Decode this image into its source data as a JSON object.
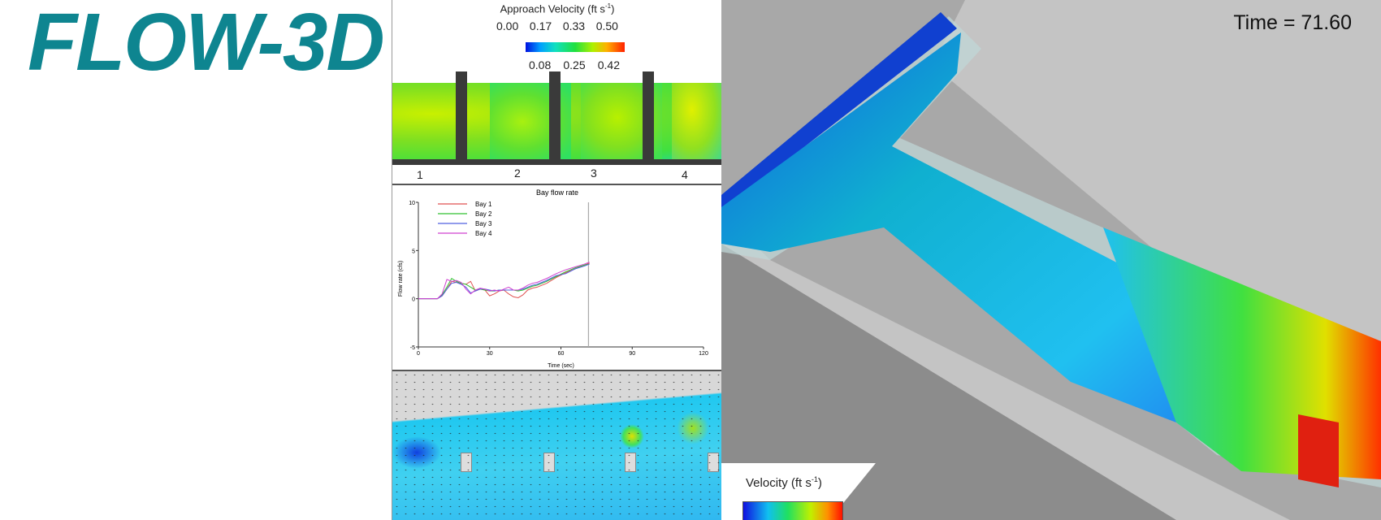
{
  "logo": {
    "text": "FLOW-3D",
    "mark": "®",
    "color": "#0e8590"
  },
  "approach": {
    "title": "Approach Velocity (ft s",
    "title_sup": "-1",
    "title_end": ")",
    "ticks_top": [
      "0.00",
      "0.17",
      "0.33",
      "0.50"
    ],
    "ticks_bottom": [
      "0.08",
      "0.25",
      "0.42"
    ],
    "bays": [
      "1",
      "2",
      "3",
      "4"
    ]
  },
  "time_label": "Time = 71.60",
  "velocity_legend": {
    "title": "Velocity (ft s",
    "sup": "-1",
    "end": ")"
  },
  "chart_data": {
    "type": "line",
    "title": "Bay flow rate",
    "xlabel": "Time (sec)",
    "ylabel": "Flow rate (cfs)",
    "xlim": [
      0,
      120
    ],
    "ylim": [
      -5,
      10
    ],
    "xticks": [
      "0",
      "30",
      "60",
      "90",
      "120"
    ],
    "yticks": [
      "-5",
      "0",
      "5",
      "10"
    ],
    "legend": "top-left",
    "marker_time": 71.6,
    "x": [
      0,
      8,
      10,
      12,
      14,
      16,
      18,
      20,
      22,
      24,
      26,
      28,
      30,
      32,
      34,
      36,
      38,
      40,
      42,
      44,
      46,
      48,
      50,
      54,
      58,
      62,
      66,
      70,
      72
    ],
    "series": [
      {
        "name": "Bay 1",
        "color": "#e05050",
        "values": [
          0,
          0,
          0.3,
          1.0,
          1.8,
          1.7,
          1.6,
          1.5,
          1.8,
          0.8,
          1.0,
          0.9,
          0.3,
          0.5,
          0.8,
          0.9,
          0.5,
          0.2,
          0.1,
          0.4,
          0.9,
          1.1,
          1.2,
          1.6,
          2.2,
          2.7,
          3.1,
          3.5,
          3.7
        ]
      },
      {
        "name": "Bay 2",
        "color": "#30c030",
        "values": [
          0,
          0,
          0.4,
          1.2,
          2.1,
          1.8,
          1.6,
          1.5,
          1.2,
          0.9,
          1.0,
          0.9,
          0.8,
          0.8,
          0.9,
          0.9,
          0.9,
          0.9,
          0.8,
          0.9,
          1.1,
          1.3,
          1.4,
          1.8,
          2.3,
          2.8,
          3.2,
          3.5,
          3.6
        ]
      },
      {
        "name": "Bay 3",
        "color": "#5060e0",
        "values": [
          0,
          0,
          0.3,
          1.0,
          1.6,
          1.7,
          1.5,
          1.2,
          0.6,
          0.8,
          1.0,
          1.0,
          0.9,
          0.8,
          0.9,
          0.9,
          0.9,
          0.9,
          0.9,
          1.0,
          1.2,
          1.4,
          1.5,
          1.9,
          2.4,
          2.6,
          3.1,
          3.4,
          3.6
        ]
      },
      {
        "name": "Bay 4",
        "color": "#d040d0",
        "values": [
          0,
          0,
          0.5,
          2.0,
          1.8,
          1.9,
          1.7,
          1.0,
          0.5,
          0.9,
          1.1,
          1.0,
          0.8,
          0.9,
          0.8,
          1.0,
          1.2,
          0.9,
          0.9,
          1.1,
          1.4,
          1.6,
          1.7,
          2.1,
          2.6,
          3.0,
          3.3,
          3.6,
          3.8
        ]
      }
    ]
  }
}
